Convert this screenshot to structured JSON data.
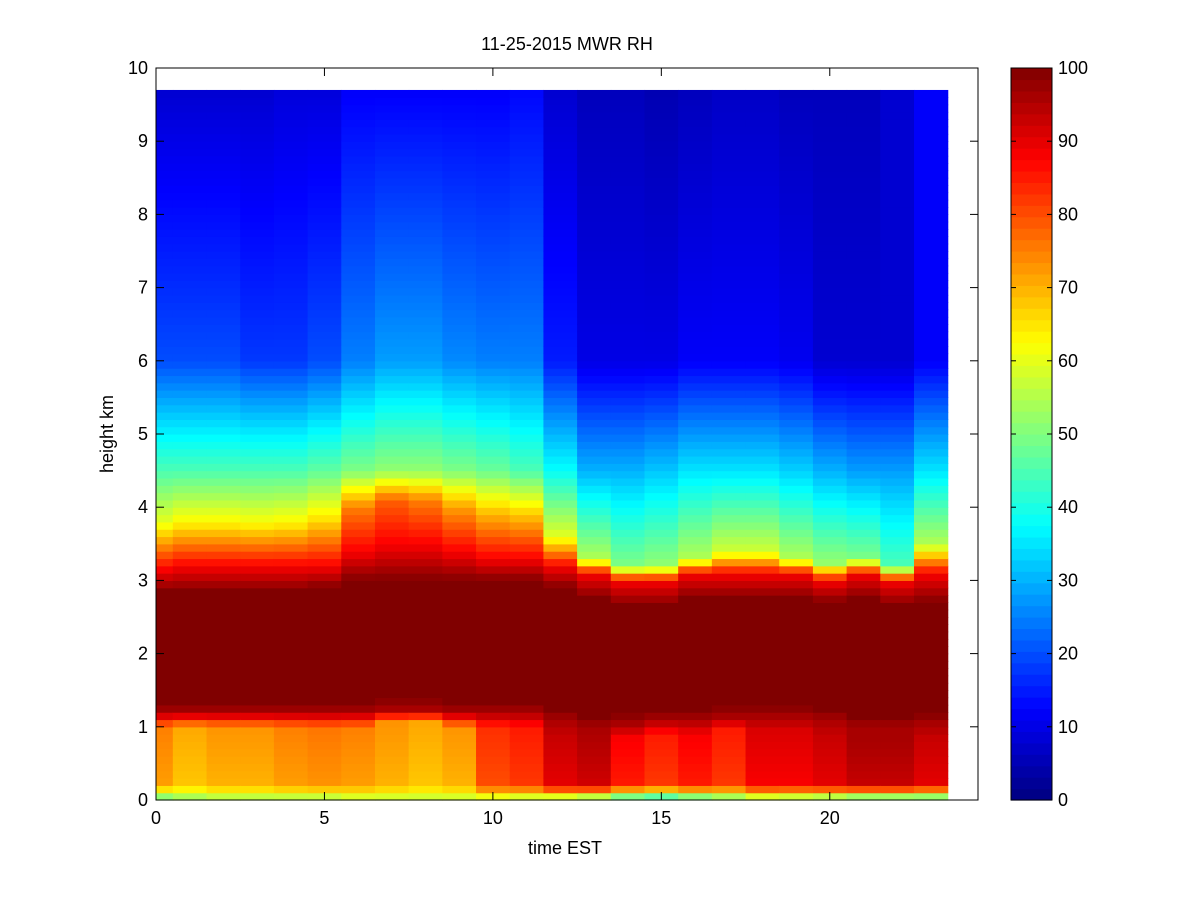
{
  "chart_data": {
    "type": "heatmap",
    "title": "11-25-2015 MWR RH",
    "xlabel": "time EST",
    "ylabel": "height km",
    "xlim": [
      0,
      24.4
    ],
    "ylim": [
      0,
      10
    ],
    "x_ticks": [
      0,
      5,
      10,
      15,
      20
    ],
    "y_ticks": [
      0,
      1,
      2,
      3,
      4,
      5,
      6,
      7,
      8,
      9,
      10
    ],
    "colorbar": {
      "colormap": "jet",
      "clim": [
        0,
        100
      ],
      "ticks": [
        0,
        10,
        20,
        30,
        40,
        50,
        60,
        70,
        80,
        90,
        100
      ]
    },
    "grid": false,
    "x_centers": [
      0,
      1,
      2,
      3,
      4,
      5,
      6,
      7,
      8,
      9,
      10,
      11,
      12,
      13,
      14,
      15,
      16,
      17,
      18,
      19,
      20,
      21,
      22,
      23
    ],
    "y_centers": [
      0.05,
      0.15,
      0.25,
      0.35,
      0.45,
      0.55,
      0.65,
      0.75,
      0.85,
      0.95,
      1.05,
      1.15,
      1.25,
      1.35,
      1.45,
      1.55,
      1.65,
      1.75,
      1.85,
      1.95,
      2.05,
      2.15,
      2.25,
      2.35,
      2.45,
      2.55,
      2.65,
      2.75,
      2.85,
      2.95,
      3.05,
      3.15,
      3.25,
      3.35,
      3.45,
      3.55,
      3.65,
      3.75,
      3.85,
      3.95,
      4.05,
      4.15,
      4.25,
      4.35,
      4.45,
      4.55,
      4.65,
      4.75,
      4.85,
      4.95,
      5.05,
      5.15,
      5.25,
      5.35,
      5.45,
      5.55,
      5.65,
      5.75,
      5.85,
      5.95,
      6.05,
      6.15,
      6.25,
      6.35,
      6.45,
      6.55,
      6.65,
      6.75,
      6.85,
      6.95,
      7.05,
      7.15,
      7.25,
      7.35,
      7.45,
      7.55,
      7.65,
      7.75,
      7.85,
      7.95,
      8.05,
      8.15,
      8.25,
      8.35,
      8.45,
      8.55,
      8.65,
      8.75,
      8.85,
      8.95,
      9.05,
      9.15,
      9.25,
      9.35,
      9.45,
      9.55,
      9.65
    ],
    "columns": [
      {
        "x": 0,
        "sfc": 45,
        "low": 72,
        "b1": 1.2,
        "b2": 2.85,
        "trans": 3.15,
        "mid_h": 3.8,
        "mid": 60,
        "hi4": 45,
        "hi6": 20,
        "top": 8
      },
      {
        "x": 1,
        "sfc": 50,
        "low": 68,
        "b1": 1.2,
        "b2": 2.85,
        "trans": 3.2,
        "mid_h": 3.8,
        "mid": 63,
        "hi4": 45,
        "hi6": 20,
        "top": 8
      },
      {
        "x": 2,
        "sfc": 52,
        "low": 70,
        "b1": 1.2,
        "b2": 2.85,
        "trans": 3.2,
        "mid_h": 3.8,
        "mid": 63,
        "hi4": 45,
        "hi6": 20,
        "top": 8
      },
      {
        "x": 3,
        "sfc": 52,
        "low": 70,
        "b1": 1.2,
        "b2": 2.85,
        "trans": 3.2,
        "mid_h": 3.8,
        "mid": 62,
        "hi4": 45,
        "hi6": 18,
        "top": 8
      },
      {
        "x": 4,
        "sfc": 52,
        "low": 72,
        "b1": 1.2,
        "b2": 2.85,
        "trans": 3.2,
        "mid_h": 3.8,
        "mid": 63,
        "hi4": 45,
        "hi6": 18,
        "top": 9
      },
      {
        "x": 5,
        "sfc": 52,
        "low": 73,
        "b1": 1.2,
        "b2": 2.9,
        "trans": 3.2,
        "mid_h": 3.85,
        "mid": 65,
        "hi4": 47,
        "hi6": 20,
        "top": 9
      },
      {
        "x": 6,
        "sfc": 55,
        "low": 72,
        "b1": 1.2,
        "b2": 3.0,
        "trans": 3.4,
        "mid_h": 4.0,
        "mid": 75,
        "hi4": 50,
        "hi6": 25,
        "top": 12
      },
      {
        "x": 7,
        "sfc": 55,
        "low": 70,
        "b1": 1.25,
        "b2": 3.0,
        "trans": 3.5,
        "mid_h": 4.1,
        "mid": 78,
        "hi4": 52,
        "hi6": 28,
        "top": 12
      },
      {
        "x": 8,
        "sfc": 55,
        "low": 68,
        "b1": 1.25,
        "b2": 3.0,
        "trans": 3.5,
        "mid_h": 4.1,
        "mid": 75,
        "hi4": 52,
        "hi6": 28,
        "top": 12
      },
      {
        "x": 9,
        "sfc": 55,
        "low": 70,
        "b1": 1.2,
        "b2": 3.0,
        "trans": 3.4,
        "mid_h": 4.0,
        "mid": 72,
        "hi4": 50,
        "hi6": 26,
        "top": 12
      },
      {
        "x": 10,
        "sfc": 55,
        "low": 80,
        "b1": 1.2,
        "b2": 3.0,
        "trans": 3.3,
        "mid_h": 3.9,
        "mid": 70,
        "hi4": 48,
        "hi6": 25,
        "top": 12
      },
      {
        "x": 11,
        "sfc": 52,
        "low": 82,
        "b1": 1.2,
        "b2": 3.0,
        "trans": 3.3,
        "mid_h": 3.9,
        "mid": 68,
        "hi4": 45,
        "hi6": 25,
        "top": 13
      },
      {
        "x": 12,
        "sfc": 50,
        "low": 90,
        "b1": 1.1,
        "b2": 2.9,
        "trans": 3.2,
        "mid_h": 3.6,
        "mid": 60,
        "hi4": 38,
        "hi6": 15,
        "top": 8
      },
      {
        "x": 13,
        "sfc": 45,
        "low": 92,
        "b1": 1.0,
        "b2": 2.75,
        "trans": 3.1,
        "mid_h": 3.3,
        "mid": 55,
        "hi4": 30,
        "hi6": 10,
        "top": 6
      },
      {
        "x": 14,
        "sfc": 38,
        "low": 85,
        "b1": 1.05,
        "b2": 2.65,
        "trans": 3.0,
        "mid_h": 3.2,
        "mid": 50,
        "hi4": 30,
        "hi6": 10,
        "top": 6
      },
      {
        "x": 15,
        "sfc": 35,
        "low": 82,
        "b1": 1.1,
        "b2": 2.65,
        "trans": 3.0,
        "mid_h": 3.2,
        "mid": 52,
        "hi4": 32,
        "hi6": 10,
        "top": 5
      },
      {
        "x": 16,
        "sfc": 40,
        "low": 85,
        "b1": 1.1,
        "b2": 2.75,
        "trans": 3.1,
        "mid_h": 3.3,
        "mid": 55,
        "hi4": 35,
        "hi6": 12,
        "top": 6
      },
      {
        "x": 17,
        "sfc": 45,
        "low": 82,
        "b1": 1.15,
        "b2": 2.75,
        "trans": 3.1,
        "mid_h": 3.4,
        "mid": 58,
        "hi4": 35,
        "hi6": 12,
        "top": 7
      },
      {
        "x": 18,
        "sfc": 50,
        "low": 88,
        "b1": 1.15,
        "b2": 2.75,
        "trans": 3.1,
        "mid_h": 3.4,
        "mid": 58,
        "hi4": 35,
        "hi6": 12,
        "top": 7
      },
      {
        "x": 19,
        "sfc": 48,
        "low": 88,
        "b1": 1.15,
        "b2": 2.75,
        "trans": 3.1,
        "mid_h": 3.3,
        "mid": 55,
        "hi4": 33,
        "hi6": 11,
        "top": 6
      },
      {
        "x": 20,
        "sfc": 45,
        "low": 90,
        "b1": 1.1,
        "b2": 2.7,
        "trans": 3.0,
        "mid_h": 3.25,
        "mid": 52,
        "hi4": 30,
        "hi6": 8,
        "top": 6
      },
      {
        "x": 21,
        "sfc": 40,
        "low": 93,
        "b1": 1.0,
        "b2": 2.75,
        "trans": 3.1,
        "mid_h": 3.3,
        "mid": 50,
        "hi4": 28,
        "hi6": 8,
        "top": 6
      },
      {
        "x": 22,
        "sfc": 40,
        "low": 93,
        "b1": 1.0,
        "b2": 2.65,
        "trans": 3.0,
        "mid_h": 3.2,
        "mid": 45,
        "hi4": 28,
        "hi6": 8,
        "top": 8
      },
      {
        "x": 23,
        "sfc": 40,
        "low": 90,
        "b1": 1.05,
        "b2": 2.7,
        "trans": 3.1,
        "mid_h": 3.5,
        "mid": 55,
        "hi4": 35,
        "hi6": 12,
        "top": 12
      }
    ]
  }
}
